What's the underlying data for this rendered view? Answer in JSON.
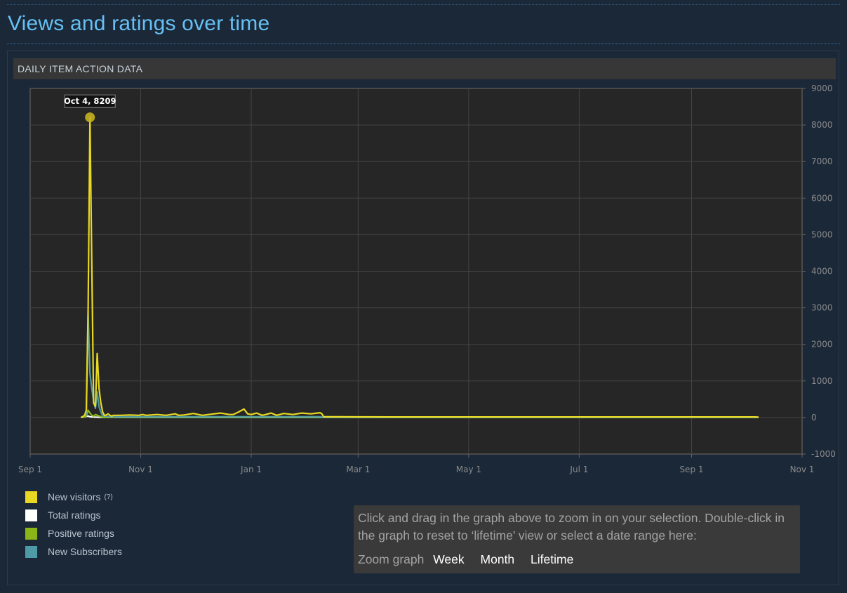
{
  "page": {
    "title": "Views and ratings over time"
  },
  "panel": {
    "header": "DAILY ITEM ACTION DATA"
  },
  "tooltip": {
    "text": "Oct 4, 8209"
  },
  "legend": {
    "items": [
      {
        "label": "New visitors",
        "color": "#e8d821",
        "help": "(?)"
      },
      {
        "label": "Total ratings",
        "color": "#ffffff"
      },
      {
        "label": "Positive ratings",
        "color": "#8bb617"
      },
      {
        "label": "New Subscribers",
        "color": "#4e9aa6"
      }
    ]
  },
  "zoom": {
    "help_text": "Click and drag in the graph above to zoom in on your selection. Double-click in the graph to reset to ‘lifetime’ view or select a date range here:",
    "label": "Zoom graph",
    "options": [
      "Week",
      "Month",
      "Lifetime"
    ]
  },
  "chart_data": {
    "type": "line",
    "x_ticks": [
      "Sep 1",
      "Nov 1",
      "Jan 1",
      "Mar 1",
      "May 1",
      "Jul 1",
      "Sep 1",
      "Nov 1"
    ],
    "y_ticks": [
      "9000",
      "8000",
      "7000",
      "6000",
      "5000",
      "4000",
      "3000",
      "2000",
      "1000",
      "0",
      "-1000"
    ],
    "ylim": [
      -1000,
      9000
    ],
    "x_days_range": [
      0,
      426
    ],
    "grid": true,
    "annotation": {
      "label": "Oct 4, 8209",
      "day": 33,
      "value": 8209
    },
    "series": [
      {
        "name": "New visitors",
        "color": "#e8d821",
        "points": [
          [
            28,
            0
          ],
          [
            29,
            20
          ],
          [
            30,
            60
          ],
          [
            31,
            200
          ],
          [
            32,
            3000
          ],
          [
            33,
            8209
          ],
          [
            34,
            4200
          ],
          [
            35,
            400
          ],
          [
            36,
            300
          ],
          [
            37,
            1750
          ],
          [
            38,
            800
          ],
          [
            39,
            400
          ],
          [
            40,
            150
          ],
          [
            41,
            50
          ],
          [
            42,
            70
          ],
          [
            43,
            100
          ],
          [
            44,
            60
          ],
          [
            45,
            40
          ],
          [
            46,
            60
          ],
          [
            50,
            60
          ],
          [
            55,
            70
          ],
          [
            60,
            60
          ],
          [
            62,
            80
          ],
          [
            64,
            60
          ],
          [
            70,
            80
          ],
          [
            75,
            60
          ],
          [
            80,
            100
          ],
          [
            82,
            60
          ],
          [
            85,
            70
          ],
          [
            90,
            110
          ],
          [
            95,
            60
          ],
          [
            100,
            90
          ],
          [
            105,
            120
          ],
          [
            110,
            80
          ],
          [
            112,
            80
          ],
          [
            115,
            150
          ],
          [
            118,
            230
          ],
          [
            120,
            100
          ],
          [
            122,
            80
          ],
          [
            125,
            120
          ],
          [
            128,
            60
          ],
          [
            130,
            80
          ],
          [
            133,
            120
          ],
          [
            136,
            60
          ],
          [
            140,
            110
          ],
          [
            145,
            80
          ],
          [
            150,
            120
          ],
          [
            155,
            100
          ],
          [
            160,
            130
          ],
          [
            161,
            100
          ],
          [
            162,
            20
          ],
          [
            170,
            20
          ],
          [
            200,
            15
          ],
          [
            250,
            15
          ],
          [
            300,
            15
          ],
          [
            350,
            15
          ],
          [
            400,
            15
          ],
          [
            402,
            10
          ]
        ]
      },
      {
        "name": "New Subscribers",
        "color": "#4e9aa6",
        "points": [
          [
            28,
            0
          ],
          [
            31,
            80
          ],
          [
            32,
            2850
          ],
          [
            33,
            1200
          ],
          [
            34,
            800
          ],
          [
            35,
            450
          ],
          [
            36,
            250
          ],
          [
            37,
            700
          ],
          [
            38,
            300
          ],
          [
            39,
            150
          ],
          [
            40,
            40
          ],
          [
            45,
            20
          ],
          [
            100,
            20
          ],
          [
            160,
            20
          ],
          [
            162,
            5
          ],
          [
            402,
            5
          ]
        ]
      },
      {
        "name": "Positive ratings",
        "color": "#8bb617",
        "points": [
          [
            28,
            0
          ],
          [
            31,
            40
          ],
          [
            32,
            200
          ],
          [
            33,
            120
          ],
          [
            34,
            60
          ],
          [
            35,
            40
          ],
          [
            36,
            80
          ],
          [
            38,
            40
          ],
          [
            40,
            5
          ],
          [
            402,
            5
          ]
        ]
      },
      {
        "name": "Total ratings",
        "color": "#ffffff",
        "points": [
          [
            28,
            0
          ],
          [
            32,
            40
          ],
          [
            33,
            20
          ],
          [
            36,
            10
          ],
          [
            40,
            2
          ],
          [
            402,
            2
          ]
        ]
      }
    ]
  }
}
